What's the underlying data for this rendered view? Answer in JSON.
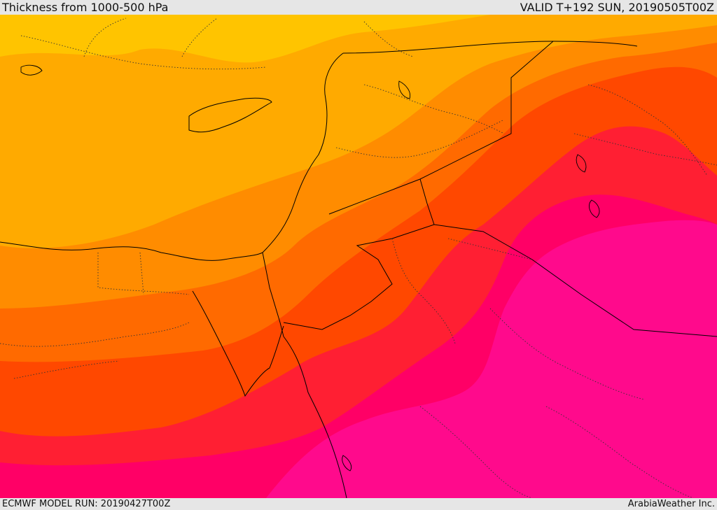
{
  "header": {
    "title": "Thickness from 1000-500 hPa",
    "valid": "VALID T+192 SUN, 20190505T00Z"
  },
  "footer": {
    "model_run": "ECMWF MODEL RUN: 20190427T00Z",
    "credit": "ArabiaWeather Inc."
  },
  "map": {
    "field": "1000-500 hPa thickness",
    "colors": {
      "band_1": "#ffc400",
      "band_2": "#ffaa00",
      "band_3": "#ff8c00",
      "band_4": "#ff6a00",
      "band_5": "#ff4800",
      "band_6": "#ff1f33",
      "band_7": "#ff0066",
      "band_8": "#ff0a8c",
      "border": "#000000",
      "province_border": "#333333"
    }
  }
}
